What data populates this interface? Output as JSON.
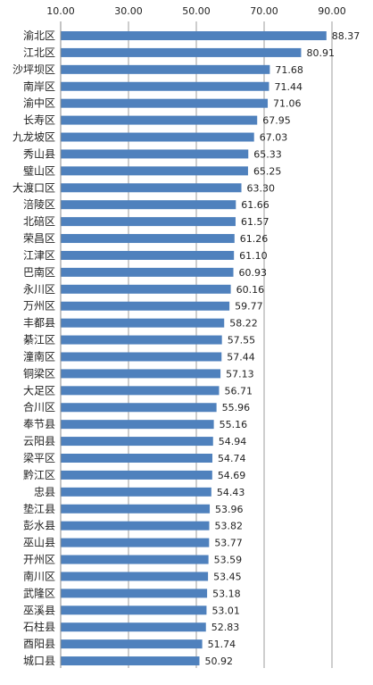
{
  "chart_data": {
    "type": "bar",
    "orientation": "horizontal",
    "xlim": [
      10,
      100
    ],
    "x_ticks": [
      10,
      30,
      50,
      70,
      90
    ],
    "x_tick_labels": [
      "10.00",
      "30.00",
      "50.00",
      "70.00",
      "90.00"
    ],
    "x_axis_position": "top",
    "grid": true,
    "bar_color": "#4F81BD",
    "categories": [
      "渝北区",
      "江北区",
      "沙坪坝区",
      "南岸区",
      "渝中区",
      "长寿区",
      "九龙坡区",
      "秀山县",
      "璧山区",
      "大渡口区",
      "涪陵区",
      "北碚区",
      "荣昌区",
      "江津区",
      "巴南区",
      "永川区",
      "万州区",
      "丰都县",
      "綦江区",
      "潼南区",
      "铜梁区",
      "大足区",
      "合川区",
      "奉节县",
      "云阳县",
      "梁平区",
      "黔江区",
      "忠县",
      "垫江县",
      "彭水县",
      "巫山县",
      "开州区",
      "南川区",
      "武隆区",
      "巫溪县",
      "石柱县",
      "酉阳县",
      "城口县"
    ],
    "values": [
      88.37,
      80.91,
      71.68,
      71.44,
      71.06,
      67.95,
      67.03,
      65.33,
      65.25,
      63.3,
      61.66,
      61.57,
      61.26,
      61.1,
      60.93,
      60.16,
      59.77,
      58.22,
      57.55,
      57.44,
      57.13,
      56.71,
      55.96,
      55.16,
      54.94,
      54.74,
      54.69,
      54.43,
      53.96,
      53.82,
      53.77,
      53.59,
      53.45,
      53.18,
      53.01,
      52.83,
      51.74,
      50.92
    ],
    "value_labels": [
      "88.37",
      "80.91",
      "71.68",
      "71.44",
      "71.06",
      "67.95",
      "67.03",
      "65.33",
      "65.25",
      "63.30",
      "61.66",
      "61.57",
      "61.26",
      "61.10",
      "60.93",
      "60.16",
      "59.77",
      "58.22",
      "57.55",
      "57.44",
      "57.13",
      "56.71",
      "55.96",
      "55.16",
      "54.94",
      "54.74",
      "54.69",
      "54.43",
      "53.96",
      "53.82",
      "53.77",
      "53.59",
      "53.45",
      "53.18",
      "53.01",
      "52.83",
      "51.74",
      "50.92"
    ]
  }
}
